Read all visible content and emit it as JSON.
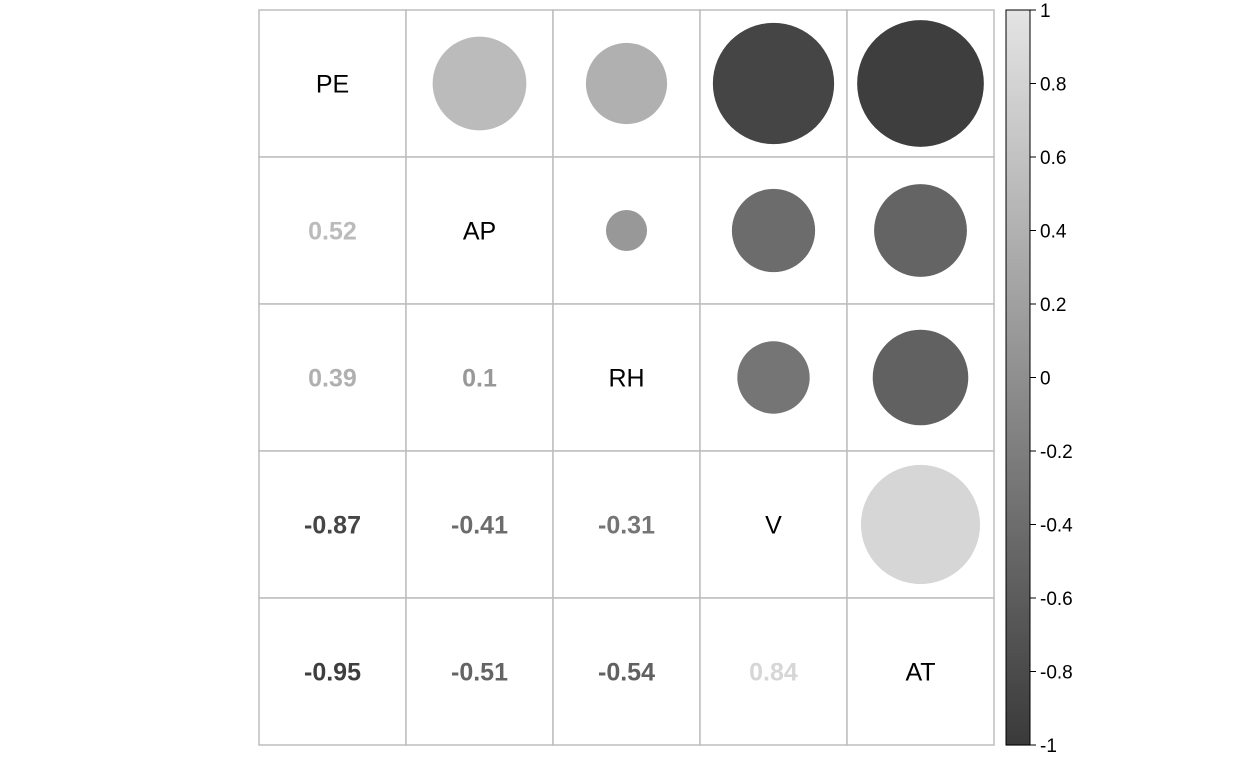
{
  "chart_data": {
    "type": "heatmap",
    "style": "correlation-matrix; lower triangle numbers, upper triangle circles sized by |r|",
    "variables": [
      "PE",
      "AP",
      "RH",
      "V",
      "AT"
    ],
    "matrix": [
      [
        1,
        0.52,
        0.39,
        -0.87,
        -0.95
      ],
      [
        0.52,
        1,
        0.1,
        -0.41,
        -0.51
      ],
      [
        0.39,
        0.1,
        1,
        -0.31,
        -0.54
      ],
      [
        -0.87,
        -0.41,
        -0.31,
        1,
        0.84
      ],
      [
        -0.95,
        -0.51,
        -0.54,
        0.84,
        1
      ]
    ],
    "lower_labels": [
      {
        "row": 1,
        "col": 0,
        "text": "0.52"
      },
      {
        "row": 2,
        "col": 0,
        "text": "0.39"
      },
      {
        "row": 2,
        "col": 1,
        "text": "0.1"
      },
      {
        "row": 3,
        "col": 0,
        "text": "-0.87"
      },
      {
        "row": 3,
        "col": 1,
        "text": "-0.41"
      },
      {
        "row": 3,
        "col": 2,
        "text": "-0.31"
      },
      {
        "row": 4,
        "col": 0,
        "text": "-0.95"
      },
      {
        "row": 4,
        "col": 1,
        "text": "-0.51"
      },
      {
        "row": 4,
        "col": 2,
        "text": "-0.54"
      },
      {
        "row": 4,
        "col": 3,
        "text": "0.84"
      }
    ],
    "colorbar": {
      "range": [
        -1,
        1
      ],
      "ticks": [
        "1",
        "0.8",
        "0.6",
        "0.4",
        "0.2",
        "0",
        "-0.2",
        "-0.4",
        "-0.6",
        "-0.8",
        "-1"
      ],
      "low_color": "#3a3a3a",
      "high_color": "#e4e4e4"
    },
    "grid_color": "#bdbdbd"
  }
}
